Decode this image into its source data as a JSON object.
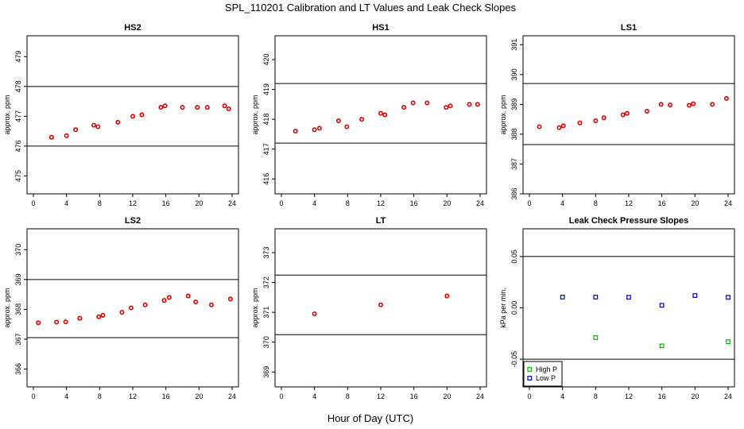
{
  "title": "SPL_110201  Calibration and LT Values and Leak Check Slopes",
  "xlabel": "Hour of Day (UTC)",
  "colors": {
    "cal_point": "#e00000",
    "high_p": "#00bb00",
    "low_p": "#0000cc",
    "line": "#000000"
  },
  "chart_data": [
    {
      "type": "scatter",
      "title": "HS2",
      "ylabel": "approx. ppm",
      "xlim": [
        0,
        24
      ],
      "ylim": [
        474.4,
        479.7
      ],
      "xticks": [
        "0",
        "4",
        "8",
        "12",
        "16",
        "20",
        "24"
      ],
      "yticks": [
        "475",
        "476",
        "477",
        "478",
        "479"
      ],
      "hlines": [
        476.0,
        478.0
      ],
      "series": [
        {
          "x": [
            2.2,
            4,
            5.1,
            7.3,
            7.8,
            10.2,
            12,
            13.1,
            15.4,
            15.9,
            18,
            19.8,
            21,
            23.1,
            23.6
          ],
          "y": [
            476.3,
            476.35,
            476.55,
            476.7,
            476.65,
            476.8,
            477.0,
            477.05,
            477.3,
            477.35,
            477.3,
            477.3,
            477.3,
            477.35,
            477.25
          ]
        }
      ]
    },
    {
      "type": "scatter",
      "title": "HS1",
      "ylabel": "approx. ppm",
      "xlim": [
        0,
        24
      ],
      "ylim": [
        415.5,
        420.8
      ],
      "xticks": [
        "0",
        "4",
        "8",
        "12",
        "16",
        "20",
        "24"
      ],
      "yticks": [
        "416",
        "417",
        "418",
        "419",
        "420"
      ],
      "hlines": [
        417.2,
        419.2
      ],
      "series": [
        {
          "x": [
            1.7,
            4,
            4.6,
            6.9,
            7.9,
            9.7,
            12,
            12.5,
            14.8,
            15.9,
            17.6,
            19.9,
            20.4,
            22.7,
            23.7
          ],
          "y": [
            417.6,
            417.65,
            417.7,
            417.95,
            417.75,
            418.0,
            418.2,
            418.15,
            418.4,
            418.55,
            418.55,
            418.4,
            418.45,
            418.5,
            418.5
          ]
        }
      ]
    },
    {
      "type": "scatter",
      "title": "LS1",
      "ylabel": "approx. ppm",
      "xlim": [
        0,
        24
      ],
      "ylim": [
        386.0,
        391.3
      ],
      "xticks": [
        "0",
        "4",
        "8",
        "12",
        "16",
        "20",
        "24"
      ],
      "yticks": [
        "386",
        "387",
        "388",
        "389",
        "390",
        "391"
      ],
      "hlines": [
        387.65,
        389.7
      ],
      "series": [
        {
          "x": [
            1.2,
            3.6,
            4.1,
            6.1,
            8,
            9,
            11.3,
            11.8,
            14.2,
            15.9,
            17,
            19.3,
            19.8,
            22.1,
            23.8
          ],
          "y": [
            388.25,
            388.22,
            388.28,
            388.38,
            388.45,
            388.55,
            388.65,
            388.7,
            388.77,
            389.0,
            388.98,
            388.97,
            389.02,
            389.0,
            389.2
          ]
        }
      ]
    },
    {
      "type": "scatter",
      "title": "LS2",
      "ylabel": "approx. ppm",
      "xlim": [
        0,
        24
      ],
      "ylim": [
        365.4,
        370.7
      ],
      "xticks": [
        "0",
        "4",
        "8",
        "12",
        "16",
        "20",
        "24"
      ],
      "yticks": [
        "366",
        "367",
        "368",
        "369",
        "370"
      ],
      "hlines": [
        367.05,
        369.0
      ],
      "series": [
        {
          "x": [
            0.6,
            2.8,
            3.9,
            5.6,
            7.9,
            8.4,
            10.7,
            11.8,
            13.5,
            15.8,
            16.4,
            18.7,
            19.6,
            21.5,
            23.8
          ],
          "y": [
            367.55,
            367.57,
            367.58,
            367.7,
            367.75,
            367.8,
            367.9,
            368.05,
            368.15,
            368.3,
            368.4,
            368.45,
            368.25,
            368.15,
            368.35
          ]
        }
      ]
    },
    {
      "type": "scatter",
      "title": "LT",
      "ylabel": "approx. ppm",
      "xlim": [
        0,
        24
      ],
      "ylim": [
        368.5,
        373.8
      ],
      "xticks": [
        "0",
        "4",
        "8",
        "12",
        "16",
        "20",
        "24"
      ],
      "yticks": [
        "369",
        "370",
        "371",
        "372",
        "373"
      ],
      "hlines": [
        370.25,
        372.25
      ],
      "series": [
        {
          "x": [
            4,
            12,
            20
          ],
          "y": [
            370.95,
            371.25,
            371.55
          ]
        }
      ]
    },
    {
      "type": "scatter",
      "title": "Leak Check Pressure Slopes",
      "ylabel": "kPa per min.",
      "xlim": [
        0,
        24
      ],
      "ylim": [
        -0.077,
        0.077
      ],
      "xticks": [
        "0",
        "4",
        "8",
        "12",
        "16",
        "20",
        "24"
      ],
      "yticks": [
        "-0.05",
        "0.00",
        "0.05"
      ],
      "hlines": [
        0.05,
        -0.05
      ],
      "series": [
        {
          "name": "High P",
          "x": [
            8,
            16,
            24
          ],
          "y": [
            -0.029,
            -0.037,
            -0.033
          ]
        },
        {
          "name": "Low P",
          "x": [
            4,
            8,
            12,
            16,
            20,
            24
          ],
          "y": [
            0.0105,
            0.0105,
            0.0103,
            0.0025,
            0.012,
            0.0103
          ]
        }
      ],
      "legend": "bottom-left"
    }
  ]
}
